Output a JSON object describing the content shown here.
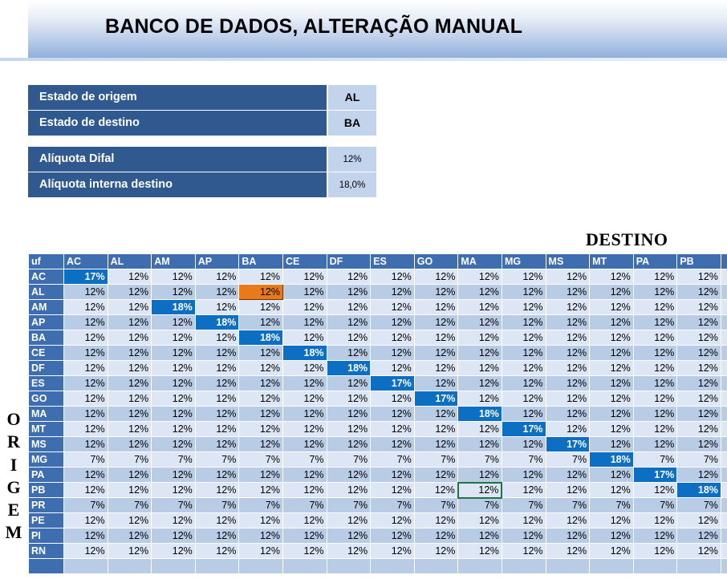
{
  "title": "BANCO DE DADOS, ALTERAÇÃO MANUAL",
  "info": {
    "origem_label": "Estado de origem",
    "origem_value": "AL",
    "destino_label": "Estado de destino",
    "destino_value": "BA",
    "difal_label": "Alíquota Difal",
    "difal_value": "12%",
    "interna_label": "Alíquota interna destino",
    "interna_value": "18,0%"
  },
  "destino_header": "DESTINO",
  "origem_letters": [
    "O",
    "R",
    "I",
    "G",
    "E",
    "M"
  ],
  "table": {
    "corner": "uf",
    "columns": [
      "AC",
      "AL",
      "AM",
      "AP",
      "BA",
      "CE",
      "DF",
      "ES",
      "GO",
      "MA",
      "MG",
      "MS",
      "MT",
      "PA",
      "PB",
      ""
    ],
    "rows": [
      {
        "uf": "AC",
        "cells": [
          "17%",
          "12%",
          "12%",
          "12%",
          "12%",
          "12%",
          "12%",
          "12%",
          "12%",
          "12%",
          "12%",
          "12%",
          "12%",
          "12%",
          "12%",
          ""
        ]
      },
      {
        "uf": "AL",
        "cells": [
          "12%",
          "12%",
          "12%",
          "12%",
          "12%",
          "12%",
          "12%",
          "12%",
          "12%",
          "12%",
          "12%",
          "12%",
          "12%",
          "12%",
          "12%",
          ""
        ]
      },
      {
        "uf": "AM",
        "cells": [
          "12%",
          "12%",
          "18%",
          "12%",
          "12%",
          "12%",
          "12%",
          "12%",
          "12%",
          "12%",
          "12%",
          "12%",
          "12%",
          "12%",
          "12%",
          ""
        ]
      },
      {
        "uf": "AP",
        "cells": [
          "12%",
          "12%",
          "12%",
          "18%",
          "12%",
          "12%",
          "12%",
          "12%",
          "12%",
          "12%",
          "12%",
          "12%",
          "12%",
          "12%",
          "12%",
          ""
        ]
      },
      {
        "uf": "BA",
        "cells": [
          "12%",
          "12%",
          "12%",
          "12%",
          "18%",
          "12%",
          "12%",
          "12%",
          "12%",
          "12%",
          "12%",
          "12%",
          "12%",
          "12%",
          "12%",
          ""
        ]
      },
      {
        "uf": "CE",
        "cells": [
          "12%",
          "12%",
          "12%",
          "12%",
          "12%",
          "18%",
          "12%",
          "12%",
          "12%",
          "12%",
          "12%",
          "12%",
          "12%",
          "12%",
          "12%",
          ""
        ]
      },
      {
        "uf": "DF",
        "cells": [
          "12%",
          "12%",
          "12%",
          "12%",
          "12%",
          "12%",
          "18%",
          "12%",
          "12%",
          "12%",
          "12%",
          "12%",
          "12%",
          "12%",
          "12%",
          ""
        ]
      },
      {
        "uf": "ES",
        "cells": [
          "12%",
          "12%",
          "12%",
          "12%",
          "12%",
          "12%",
          "12%",
          "17%",
          "12%",
          "12%",
          "12%",
          "12%",
          "12%",
          "12%",
          "12%",
          ""
        ]
      },
      {
        "uf": "GO",
        "cells": [
          "12%",
          "12%",
          "12%",
          "12%",
          "12%",
          "12%",
          "12%",
          "12%",
          "17%",
          "12%",
          "12%",
          "12%",
          "12%",
          "12%",
          "12%",
          ""
        ]
      },
      {
        "uf": "MA",
        "cells": [
          "12%",
          "12%",
          "12%",
          "12%",
          "12%",
          "12%",
          "12%",
          "12%",
          "12%",
          "18%",
          "12%",
          "12%",
          "12%",
          "12%",
          "12%",
          ""
        ]
      },
      {
        "uf": "MT",
        "cells": [
          "12%",
          "12%",
          "12%",
          "12%",
          "12%",
          "12%",
          "12%",
          "12%",
          "12%",
          "12%",
          "17%",
          "12%",
          "12%",
          "12%",
          "12%",
          ""
        ]
      },
      {
        "uf": "MS",
        "cells": [
          "12%",
          "12%",
          "12%",
          "12%",
          "12%",
          "12%",
          "12%",
          "12%",
          "12%",
          "12%",
          "12%",
          "17%",
          "12%",
          "12%",
          "12%",
          ""
        ]
      },
      {
        "uf": "MG",
        "cells": [
          "7%",
          "7%",
          "7%",
          "7%",
          "7%",
          "7%",
          "7%",
          "7%",
          "7%",
          "7%",
          "7%",
          "7%",
          "18%",
          "7%",
          "7%",
          ""
        ]
      },
      {
        "uf": "PA",
        "cells": [
          "12%",
          "12%",
          "12%",
          "12%",
          "12%",
          "12%",
          "12%",
          "12%",
          "12%",
          "12%",
          "12%",
          "12%",
          "12%",
          "17%",
          "12%",
          ""
        ]
      },
      {
        "uf": "PB",
        "cells": [
          "12%",
          "12%",
          "12%",
          "12%",
          "12%",
          "12%",
          "12%",
          "12%",
          "12%",
          "12%",
          "12%",
          "12%",
          "12%",
          "12%",
          "18%",
          ""
        ]
      },
      {
        "uf": "PR",
        "cells": [
          "7%",
          "7%",
          "7%",
          "7%",
          "7%",
          "7%",
          "7%",
          "7%",
          "7%",
          "7%",
          "7%",
          "7%",
          "7%",
          "7%",
          "7%",
          ""
        ]
      },
      {
        "uf": "PE",
        "cells": [
          "12%",
          "12%",
          "12%",
          "12%",
          "12%",
          "12%",
          "12%",
          "12%",
          "12%",
          "12%",
          "12%",
          "12%",
          "12%",
          "12%",
          "12%",
          ""
        ]
      },
      {
        "uf": "PI",
        "cells": [
          "12%",
          "12%",
          "12%",
          "12%",
          "12%",
          "12%",
          "12%",
          "12%",
          "12%",
          "12%",
          "12%",
          "12%",
          "12%",
          "12%",
          "12%",
          ""
        ]
      },
      {
        "uf": "RN",
        "cells": [
          "12%",
          "12%",
          "12%",
          "12%",
          "12%",
          "12%",
          "12%",
          "12%",
          "12%",
          "12%",
          "12%",
          "12%",
          "12%",
          "12%",
          "12%",
          ""
        ]
      },
      {
        "uf": "",
        "cells": [
          "",
          "",
          "",
          "",
          "",
          "",
          "",
          "",
          "",
          "",
          "",
          "",
          "",
          "",
          "",
          ""
        ]
      }
    ],
    "highlight": [
      [
        0,
        0
      ],
      [
        2,
        2
      ],
      [
        3,
        3
      ],
      [
        4,
        4
      ],
      [
        5,
        5
      ],
      [
        6,
        6
      ],
      [
        7,
        7
      ],
      [
        8,
        8
      ],
      [
        9,
        9
      ],
      [
        10,
        10
      ],
      [
        11,
        11
      ],
      [
        12,
        12
      ],
      [
        13,
        13
      ],
      [
        14,
        14
      ]
    ],
    "selected_cell": [
      1,
      4
    ],
    "active_cell": [
      14,
      9
    ]
  },
  "colors": {
    "header_blue": "#3f6eb0",
    "label_navy": "#305a8f",
    "diagonal_blue": "#0c6fc4",
    "selected_orange": "#e87a1c"
  }
}
